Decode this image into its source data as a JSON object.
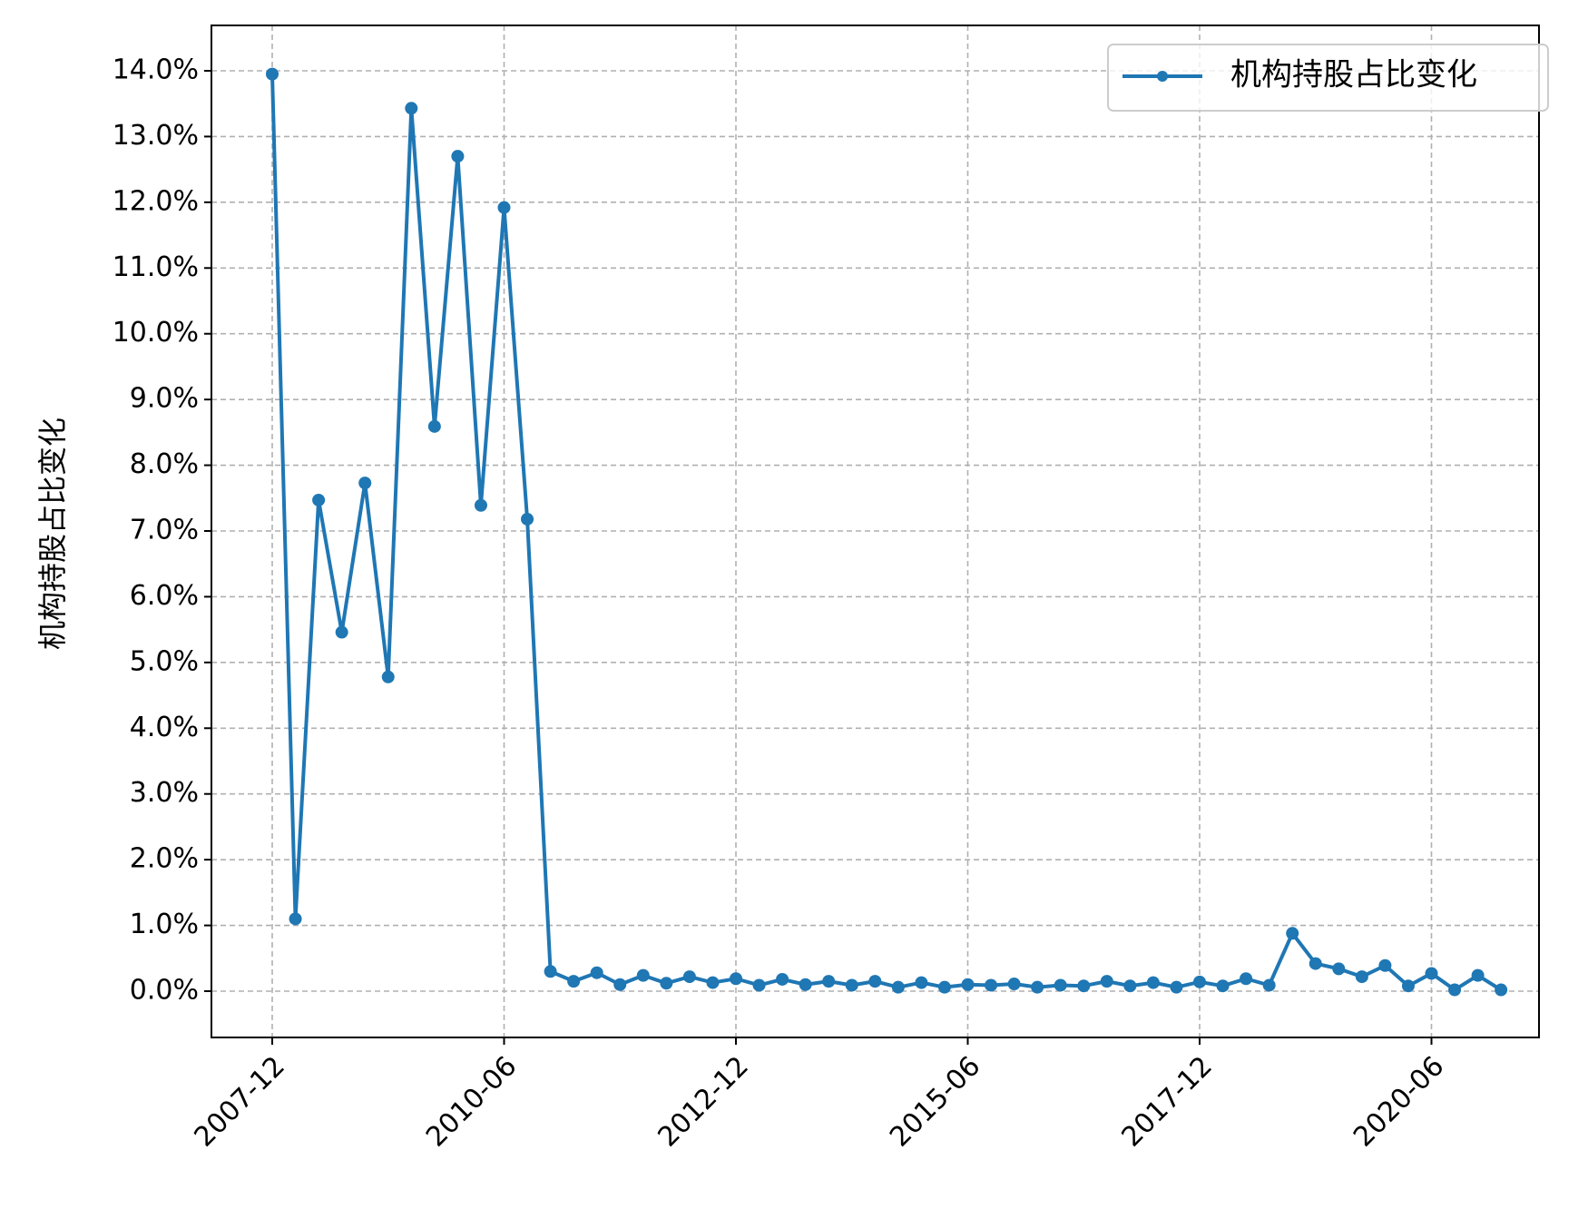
{
  "chart_data": {
    "type": "line",
    "title": "",
    "xlabel": "",
    "ylabel": "机构持股占比变化",
    "ylim": [
      -0.007,
      0.147
    ],
    "y_ticks": [
      0.0,
      0.01,
      0.02,
      0.03,
      0.04,
      0.05,
      0.06,
      0.07,
      0.08,
      0.09,
      0.1,
      0.11,
      0.12,
      0.13,
      0.14
    ],
    "y_tick_labels": [
      "0.0%",
      "1.0%",
      "2.0%",
      "3.0%",
      "4.0%",
      "5.0%",
      "6.0%",
      "7.0%",
      "8.0%",
      "9.0%",
      "10.0%",
      "11.0%",
      "12.0%",
      "13.0%",
      "14.0%"
    ],
    "x_tick_labels": [
      "2007-12",
      "2010-06",
      "2012-12",
      "2015-06",
      "2017-12",
      "2020-06"
    ],
    "x_tick_index": [
      0,
      10,
      20,
      30,
      40,
      50
    ],
    "grid": true,
    "legend_position": "upper right",
    "color": "#1f77b4",
    "series": [
      {
        "name": "机构持股占比变化",
        "values": [
          0.1395,
          0.011,
          0.0747,
          0.0546,
          0.0773,
          0.0478,
          0.1343,
          0.0859,
          0.127,
          0.0739,
          0.1192,
          0.0718,
          0.003,
          0.0015,
          0.0028,
          0.001,
          0.0024,
          0.0012,
          0.0022,
          0.0013,
          0.0019,
          0.0009,
          0.0018,
          0.001,
          0.0015,
          0.0009,
          0.0015,
          0.0006,
          0.0013,
          0.0006,
          0.001,
          0.0009,
          0.0011,
          0.0006,
          0.0009,
          0.0008,
          0.0015,
          0.0008,
          0.0013,
          0.0006,
          0.0014,
          0.0008,
          0.0019,
          0.0009,
          0.0088,
          0.0042,
          0.0034,
          0.0022,
          0.0039,
          0.0008,
          0.0027,
          0.0002,
          0.0024,
          0.0002
        ]
      }
    ]
  }
}
